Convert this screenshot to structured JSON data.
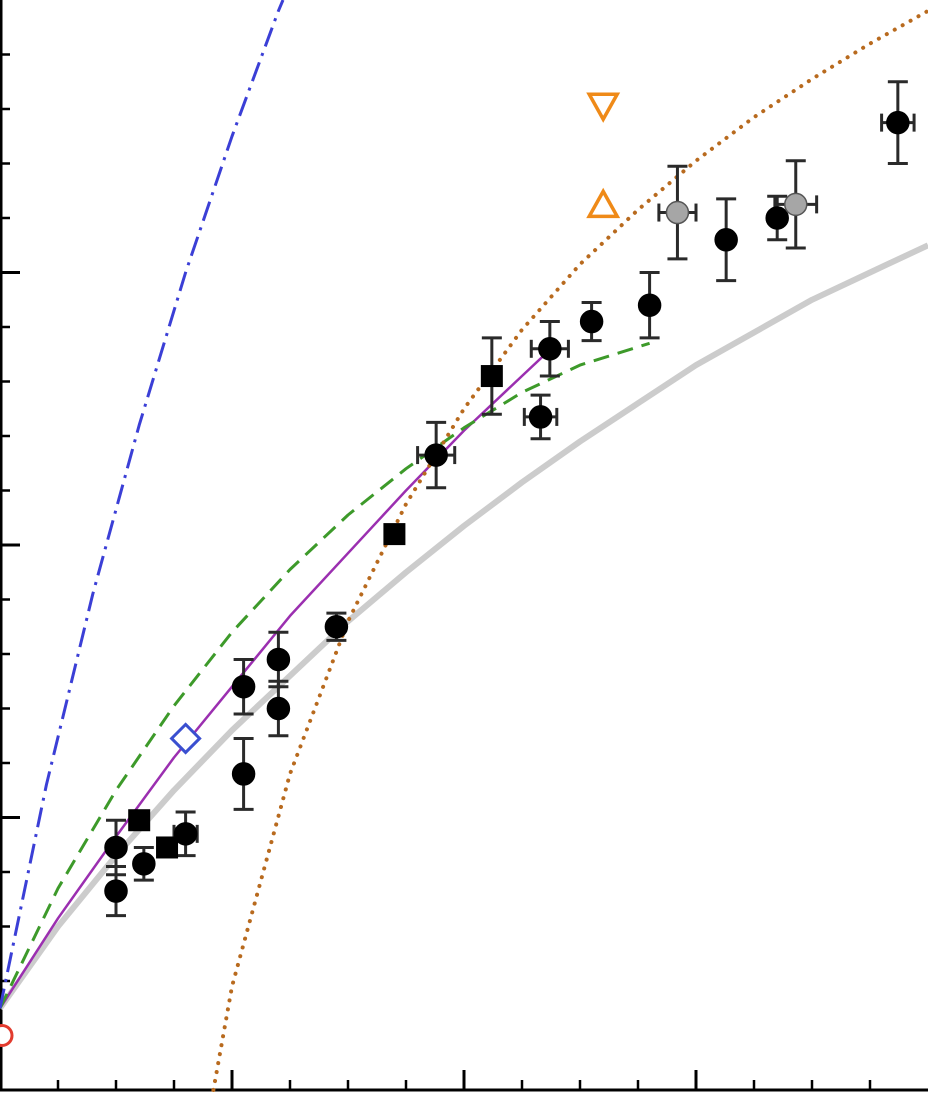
{
  "chart_data": {
    "type": "scatter",
    "title": "",
    "xlabel": "",
    "ylabel": "",
    "tick_labels_visible": false,
    "xlim": [
      0,
      4
    ],
    "ylim": [
      0,
      4
    ],
    "x_major_ticks": [
      1,
      2,
      3
    ],
    "x_minor_ticks": [
      0.25,
      0.5,
      0.75,
      1.25,
      1.5,
      1.75,
      2.25,
      2.5,
      2.75,
      3.25,
      3.5,
      3.75
    ],
    "y_major_ticks": [
      1,
      2,
      3
    ],
    "y_minor_ticks": [
      0.2,
      0.4,
      0.6,
      0.8,
      1.2,
      1.4,
      1.6,
      1.8,
      2.2,
      2.4,
      2.6,
      2.8,
      3.2,
      3.4,
      3.6,
      3.8
    ],
    "series": [
      {
        "kind": "points",
        "marker": "circle",
        "color": "#000000",
        "points": [
          {
            "x": 0.5,
            "y": 0.89,
            "yerr": 0.1
          },
          {
            "x": 0.5,
            "y": 0.73,
            "yerr": 0.09
          },
          {
            "x": 0.62,
            "y": 0.83,
            "yerr": 0.06
          },
          {
            "x": 0.8,
            "y": 0.94,
            "xerr": 0.05,
            "yerr": 0.08
          },
          {
            "x": 1.05,
            "y": 1.48,
            "yerr": 0.1
          },
          {
            "x": 1.05,
            "y": 1.16,
            "yerr": 0.13
          },
          {
            "x": 1.2,
            "y": 1.58,
            "yerr": 0.1
          },
          {
            "x": 1.2,
            "y": 1.4,
            "yerr": 0.1
          },
          {
            "x": 1.45,
            "y": 1.7,
            "yerr": 0.05
          },
          {
            "x": 1.88,
            "y": 2.33,
            "xerr": 0.08,
            "yerr": 0.12
          },
          {
            "x": 2.33,
            "y": 2.47,
            "xerr": 0.07,
            "yerr": 0.08
          },
          {
            "x": 2.37,
            "y": 2.72,
            "xerr": 0.08,
            "yerr": 0.1
          },
          {
            "x": 2.55,
            "y": 2.82,
            "yerr": 0.07
          },
          {
            "x": 2.8,
            "y": 2.88,
            "yerr": 0.12
          },
          {
            "x": 3.13,
            "y": 3.12,
            "yerr": 0.15
          },
          {
            "x": 3.35,
            "y": 3.2,
            "yerr": 0.08
          },
          {
            "x": 3.87,
            "y": 3.55,
            "xerr": 0.07,
            "yerr": 0.15
          }
        ]
      },
      {
        "kind": "points",
        "marker": "square",
        "color": "#000000",
        "points": [
          {
            "x": 0.6,
            "y": 0.99
          },
          {
            "x": 0.72,
            "y": 0.89
          },
          {
            "x": 1.7,
            "y": 2.04
          },
          {
            "x": 2.12,
            "y": 2.62,
            "yerr": 0.14
          }
        ]
      },
      {
        "kind": "points",
        "marker": "circle",
        "color": "#a6a6a6",
        "points": [
          {
            "x": 2.92,
            "y": 3.22,
            "xerr": 0.08,
            "yerr": 0.17
          },
          {
            "x": 3.43,
            "y": 3.25,
            "xerr": 0.09,
            "yerr": 0.16
          }
        ]
      },
      {
        "kind": "points",
        "marker": "diamond-open",
        "color": "#3a4fd0",
        "points": [
          {
            "x": 0.8,
            "y": 1.29
          }
        ]
      },
      {
        "kind": "points",
        "marker": "triangle-down-open",
        "color": "#ef8a18",
        "points": [
          {
            "x": 2.6,
            "y": 3.61
          }
        ]
      },
      {
        "kind": "points",
        "marker": "triangle-up-open",
        "color": "#ef8a18",
        "points": [
          {
            "x": 2.6,
            "y": 3.25
          }
        ]
      },
      {
        "kind": "points",
        "marker": "circle-open",
        "color": "#e23b2e",
        "points": [
          {
            "x": 0.0,
            "y": 0.2
          }
        ]
      },
      {
        "kind": "curve",
        "style": "solid-thick",
        "color": "#cccccc",
        "points": [
          [
            0,
            0.3
          ],
          [
            0.25,
            0.6
          ],
          [
            0.5,
            0.86
          ],
          [
            0.75,
            1.1
          ],
          [
            1.0,
            1.32
          ],
          [
            1.25,
            1.52
          ],
          [
            1.5,
            1.72
          ],
          [
            1.75,
            1.9
          ],
          [
            2.0,
            2.07
          ],
          [
            2.25,
            2.23
          ],
          [
            2.5,
            2.38
          ],
          [
            2.75,
            2.52
          ],
          [
            3.0,
            2.66
          ],
          [
            3.25,
            2.78
          ],
          [
            3.5,
            2.9
          ],
          [
            3.75,
            3.0
          ],
          [
            4.0,
            3.1
          ]
        ]
      },
      {
        "kind": "curve",
        "style": "solid",
        "color": "#9b2fb0",
        "points": [
          [
            0,
            0.3
          ],
          [
            0.25,
            0.63
          ],
          [
            0.5,
            0.93
          ],
          [
            0.75,
            1.22
          ],
          [
            1.0,
            1.48
          ],
          [
            1.25,
            1.74
          ],
          [
            1.5,
            1.97
          ],
          [
            1.75,
            2.2
          ],
          [
            2.0,
            2.42
          ],
          [
            2.25,
            2.62
          ],
          [
            2.4,
            2.74
          ]
        ]
      },
      {
        "kind": "curve",
        "style": "dashed",
        "color": "#3d9a2a",
        "points": [
          [
            0,
            0.3
          ],
          [
            0.25,
            0.74
          ],
          [
            0.5,
            1.1
          ],
          [
            0.75,
            1.41
          ],
          [
            1.0,
            1.68
          ],
          [
            1.25,
            1.91
          ],
          [
            1.5,
            2.11
          ],
          [
            1.75,
            2.28
          ],
          [
            2.0,
            2.43
          ],
          [
            2.25,
            2.56
          ],
          [
            2.5,
            2.66
          ],
          [
            2.8,
            2.74
          ]
        ]
      },
      {
        "kind": "curve",
        "style": "dashdot",
        "color": "#3b3fd6",
        "points": [
          [
            0,
            0.3
          ],
          [
            0.2,
            1.12
          ],
          [
            0.4,
            1.82
          ],
          [
            0.6,
            2.44
          ],
          [
            0.8,
            3.0
          ],
          [
            1.0,
            3.5
          ],
          [
            1.2,
            3.96
          ],
          [
            1.22,
            4.0
          ]
        ]
      },
      {
        "kind": "curve",
        "style": "dotted",
        "color": "#b86a1e",
        "points": [
          [
            0.92,
            0
          ],
          [
            1.0,
            0.38
          ],
          [
            1.25,
            1.16
          ],
          [
            1.5,
            1.72
          ],
          [
            1.75,
            2.15
          ],
          [
            2.0,
            2.5
          ],
          [
            2.25,
            2.79
          ],
          [
            2.5,
            3.03
          ],
          [
            2.75,
            3.23
          ],
          [
            3.0,
            3.41
          ],
          [
            3.25,
            3.57
          ],
          [
            3.5,
            3.71
          ],
          [
            3.75,
            3.84
          ],
          [
            4.0,
            3.96
          ]
        ]
      }
    ]
  }
}
